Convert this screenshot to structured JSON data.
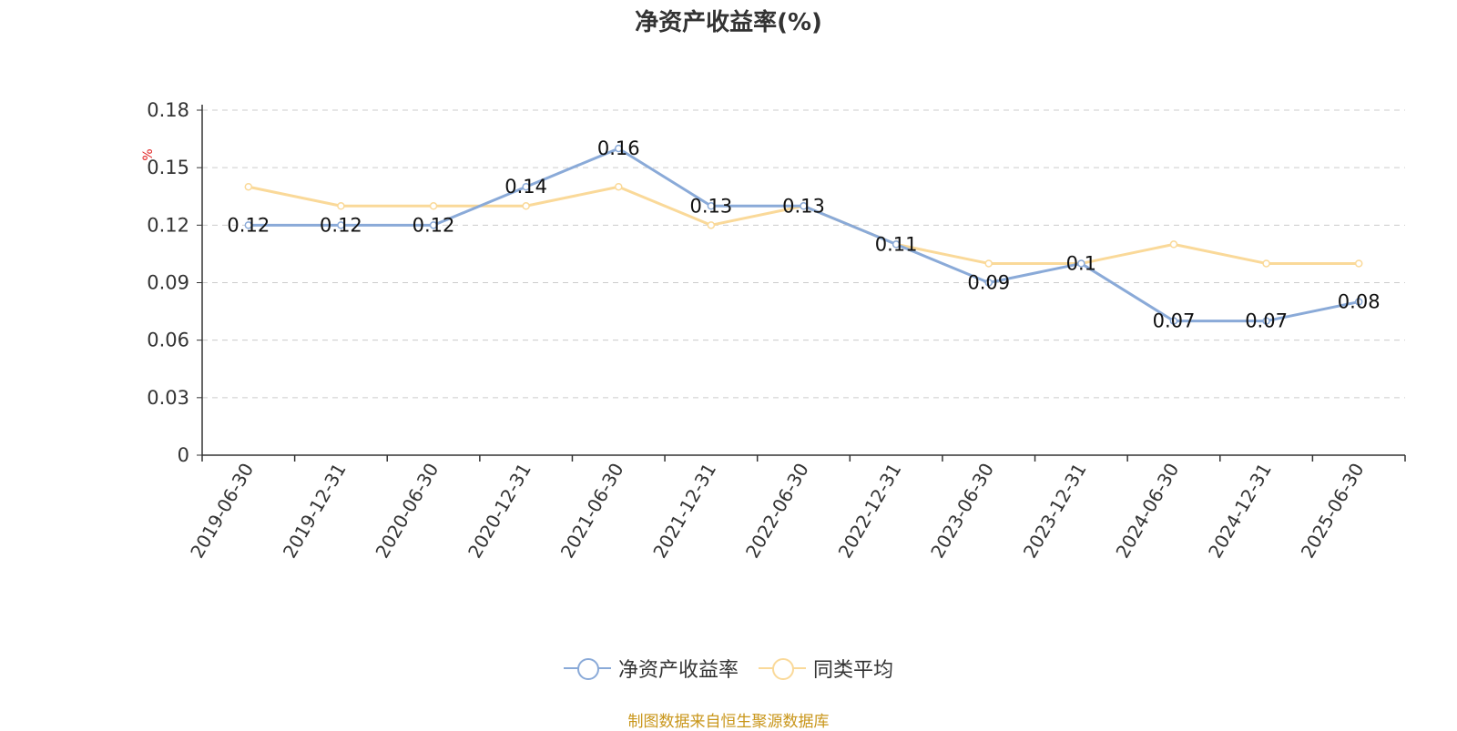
{
  "chart_data": {
    "type": "line",
    "title": "净资产收益率(%)",
    "ylabel": "%",
    "ylim": [
      0,
      0.18
    ],
    "yticks": [
      "0",
      "0.03",
      "0.06",
      "0.09",
      "0.12",
      "0.15",
      "0.18"
    ],
    "grid": true,
    "legend_position": "bottom-center",
    "categories": [
      "2019-06-30",
      "2019-12-31",
      "2020-06-30",
      "2020-12-31",
      "2021-06-30",
      "2021-12-31",
      "2022-06-30",
      "2022-12-31",
      "2023-06-30",
      "2023-12-31",
      "2024-06-30",
      "2024-12-31",
      "2025-06-30"
    ],
    "series": [
      {
        "name": "净资产收益率",
        "color": "#8aaad8",
        "values": [
          0.12,
          0.12,
          0.12,
          0.14,
          0.16,
          0.13,
          0.13,
          0.11,
          0.09,
          0.1,
          0.07,
          0.07,
          0.08
        ],
        "data_labels": [
          "0.12",
          "0.12",
          "0.12",
          "0.14",
          "0.16",
          "0.13",
          "0.13",
          "0.11",
          "0.09",
          "0.1",
          "0.07",
          "0.07",
          "0.08"
        ]
      },
      {
        "name": "同类平均",
        "color": "#fad999",
        "values": [
          0.14,
          0.13,
          0.13,
          0.13,
          0.14,
          0.12,
          0.13,
          0.11,
          0.1,
          0.1,
          0.11,
          0.1,
          0.1
        ]
      }
    ]
  },
  "source_note": "制图数据来自恒生聚源数据库"
}
